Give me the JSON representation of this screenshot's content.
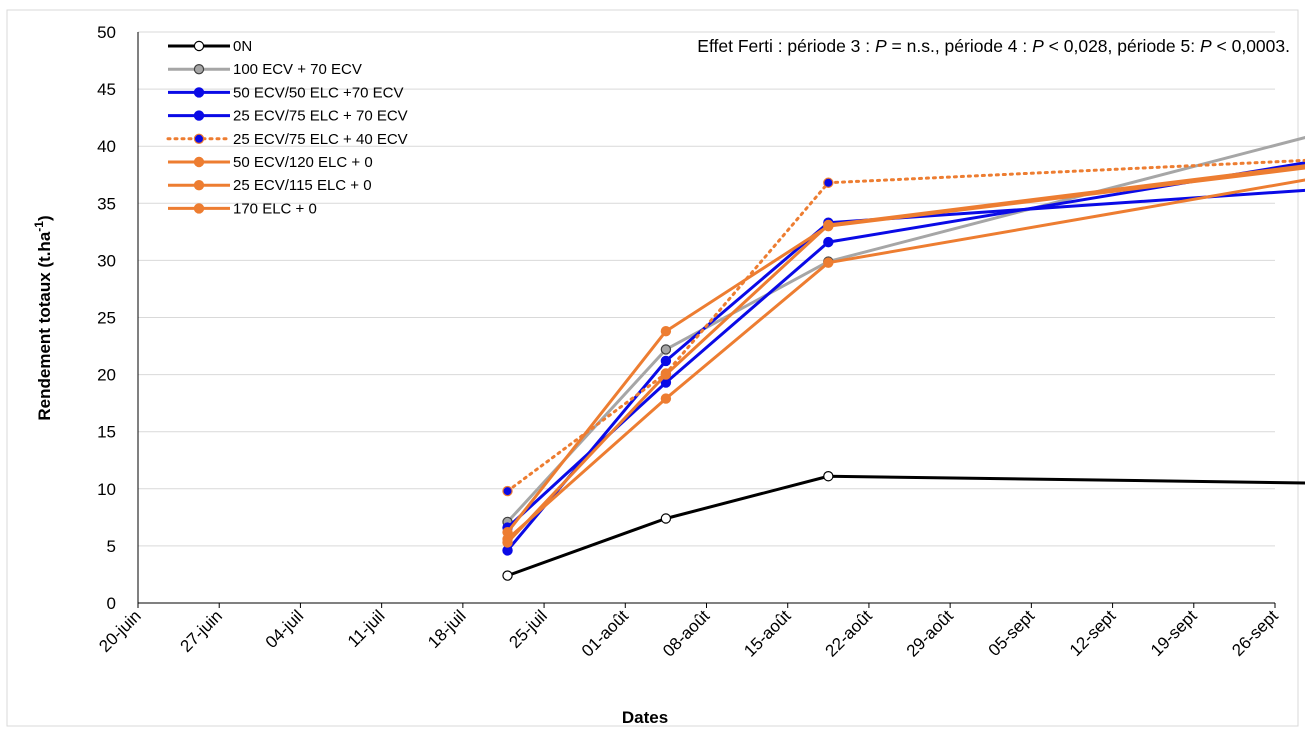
{
  "chart_data": {
    "type": "line",
    "annotation_parts": [
      {
        "text": "Effet Ferti : période 3 : ",
        "italic": false
      },
      {
        "text": "P",
        "italic": true
      },
      {
        "text": " = n.s., période 4 : ",
        "italic": false
      },
      {
        "text": "P",
        "italic": true
      },
      {
        "text": " < 0,028, période 5: ",
        "italic": false
      },
      {
        "text": "P",
        "italic": true
      },
      {
        "text": " < 0,0003.",
        "italic": false
      }
    ],
    "xlabel": "Dates",
    "ylabel_main": "Rendement totaux   (t.ha",
    "ylabel_sup": "-1",
    "ylabel_end": ")",
    "ylim": [
      0,
      50
    ],
    "yticks": [
      0,
      5,
      10,
      15,
      20,
      25,
      30,
      35,
      40,
      45,
      50
    ],
    "x_categories": [
      "20-juin",
      "27-juin",
      "04-juil",
      "11-juil",
      "18-juil",
      "25-juil",
      "01-août",
      "08-août",
      "15-août",
      "22-août",
      "29-août",
      "05-sept",
      "12-sept",
      "19-sept",
      "26-sept"
    ],
    "x_positions": [
      0,
      1,
      2,
      3,
      4,
      5,
      6,
      7,
      8,
      9,
      10,
      11,
      12,
      13,
      14
    ],
    "grid": true,
    "legend_position": "top-left",
    "series": [
      {
        "name": "0N",
        "color": "#000000",
        "marker_fill": "#ffffff",
        "marker_stroke": "#000000",
        "dashed": false,
        "x": [
          4.55,
          6.5,
          8.5,
          14.5
        ],
        "values": [
          2.4,
          7.4,
          11.1,
          10.5
        ]
      },
      {
        "name": "100 ECV + 70 ECV",
        "color": "#a6a6a6",
        "marker_fill": "#a6a6a6",
        "marker_stroke": "#404040",
        "dashed": false,
        "x": [
          4.55,
          6.5,
          8.5,
          14.5
        ],
        "values": [
          7.1,
          22.2,
          29.9,
          41.0
        ]
      },
      {
        "name": "50 ECV/50 ELC +70 ECV",
        "color": "#0a0ae6",
        "marker_fill": "#0a0ae6",
        "marker_stroke": "#0a0ae6",
        "dashed": false,
        "x": [
          4.55,
          6.5,
          8.5,
          14.5
        ],
        "values": [
          4.6,
          21.2,
          33.3,
          36.2
        ]
      },
      {
        "name": "25 ECV/75 ELC + 70 ECV",
        "color": "#0a0ae6",
        "marker_fill": "#0a0ae6",
        "marker_stroke": "#0a0ae6",
        "dashed": false,
        "x": [
          4.55,
          6.5,
          8.5,
          14.5
        ],
        "values": [
          6.6,
          19.3,
          31.6,
          38.7
        ]
      },
      {
        "name": "25 ECV/75 ELC + 40 ECV",
        "color": "#ed7d31",
        "marker_fill": "#0a0ae6",
        "marker_stroke": "#ed7d31",
        "dashed": true,
        "x": [
          4.55,
          6.5,
          8.5,
          14.5
        ],
        "values": [
          9.8,
          20.1,
          36.8,
          38.8
        ]
      },
      {
        "name": "50 ECV/120 ELC + 0",
        "color": "#ed7d31",
        "marker_fill": "#ed7d31",
        "marker_stroke": "#ed7d31",
        "dashed": false,
        "x": [
          4.55,
          6.5,
          8.5,
          14.5
        ],
        "values": [
          6.2,
          23.8,
          33.0,
          38.2
        ]
      },
      {
        "name": "25 ECV/115 ELC + 0",
        "color": "#ed7d31",
        "marker_fill": "#ed7d31",
        "marker_stroke": "#ed7d31",
        "dashed": false,
        "x": [
          4.55,
          6.5,
          8.5,
          14.5
        ],
        "values": [
          5.6,
          17.9,
          29.8,
          37.2
        ]
      },
      {
        "name": "170 ELC + 0",
        "color": "#ed7d31",
        "marker_fill": "#ed7d31",
        "marker_stroke": "#ed7d31",
        "dashed": false,
        "x": [
          4.55,
          6.5,
          8.5,
          14.5
        ],
        "values": [
          5.3,
          20.0,
          33.1,
          38.4
        ]
      }
    ]
  }
}
